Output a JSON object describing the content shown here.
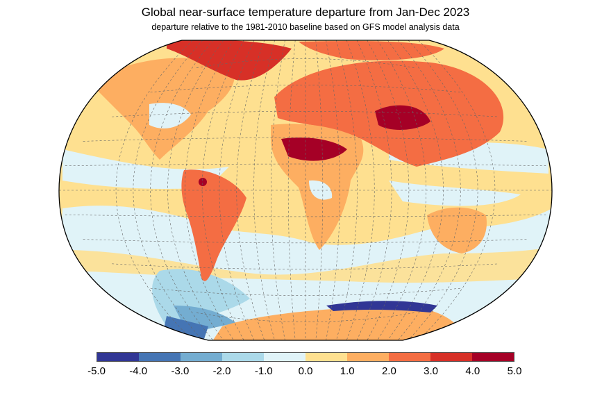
{
  "title": "Global near-surface temperature departure from Jan-Dec 2023",
  "subtitle": "departure relative to the 1981-2010 baseline based on GFS model analysis data",
  "colorbar": {
    "bounds": [
      -5,
      -4,
      -3,
      -2,
      -1,
      0,
      1,
      2,
      3,
      4,
      5
    ],
    "labels": [
      "-5.0",
      "-4.0",
      "-3.0",
      "-2.0",
      "-1.0",
      "0.0",
      "1.0",
      "2.0",
      "3.0",
      "4.0",
      "5.0"
    ],
    "colors": [
      "#313695",
      "#4575b4",
      "#74add1",
      "#abd9e9",
      "#e0f3f8",
      "#fee090",
      "#fdae61",
      "#f46d43",
      "#d73027",
      "#a50026"
    ]
  }
}
